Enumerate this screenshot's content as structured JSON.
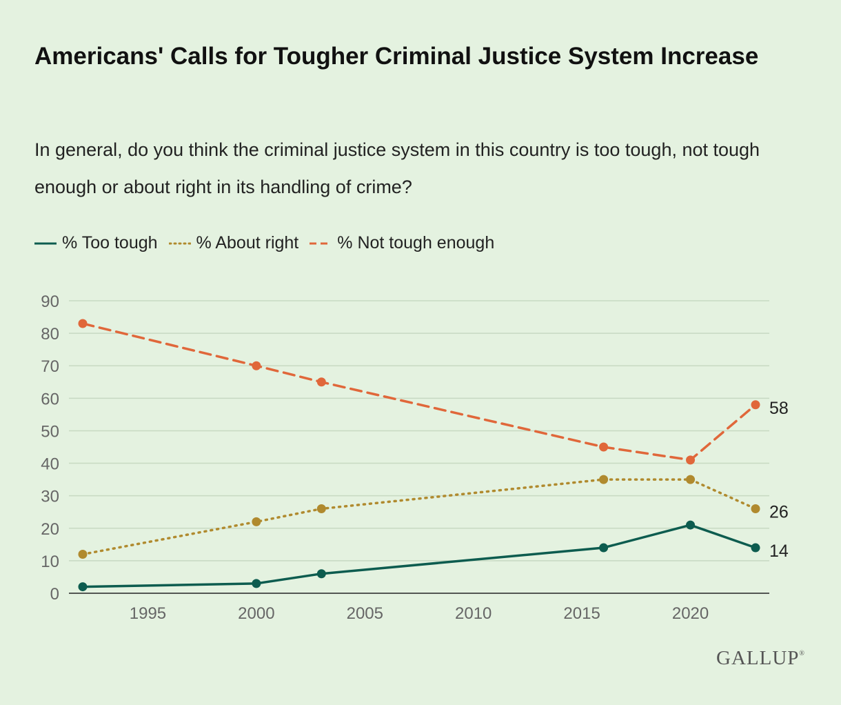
{
  "header": {
    "title": "Americans' Calls for Tougher Criminal Justice System Increase",
    "subtitle": "In general, do you think the criminal justice system in this country is too tough, not tough enough or about right in its handling of crime?"
  },
  "legend": {
    "items": [
      {
        "label": "% Too tough",
        "color": "#0d5c4f",
        "style": "solid"
      },
      {
        "label": "% About right",
        "color": "#b08a2e",
        "style": "dotted"
      },
      {
        "label": "% Not tough enough",
        "color": "#e0673a",
        "style": "dashed"
      }
    ]
  },
  "logo": {
    "text": "GALLUP",
    "mark": "®"
  },
  "chart_data": {
    "type": "line",
    "title": "Americans' Calls for Tougher Criminal Justice System Increase",
    "xlabel": "",
    "ylabel": "",
    "xlim": [
      1992,
      2023
    ],
    "ylim": [
      0,
      90
    ],
    "xticks": [
      1995,
      2000,
      2005,
      2010,
      2015,
      2020
    ],
    "yticks": [
      0,
      10,
      20,
      30,
      40,
      50,
      60,
      70,
      80,
      90
    ],
    "grid": true,
    "legend_position": "top-left",
    "series": [
      {
        "name": "% Too tough",
        "color": "#0d5c4f",
        "style": "solid",
        "x": [
          1992,
          2000,
          2003,
          2016,
          2020,
          2023
        ],
        "values": [
          2,
          3,
          6,
          14,
          21,
          14
        ],
        "end_label": "14"
      },
      {
        "name": "% About right",
        "color": "#b08a2e",
        "style": "dotted",
        "x": [
          1992,
          2000,
          2003,
          2016,
          2020,
          2023
        ],
        "values": [
          12,
          22,
          26,
          35,
          35,
          26
        ],
        "end_label": "26"
      },
      {
        "name": "% Not tough enough",
        "color": "#e0673a",
        "style": "dashed",
        "x": [
          1992,
          2000,
          2003,
          2016,
          2020,
          2023
        ],
        "values": [
          83,
          70,
          65,
          45,
          41,
          58
        ],
        "end_label": "58"
      }
    ]
  }
}
